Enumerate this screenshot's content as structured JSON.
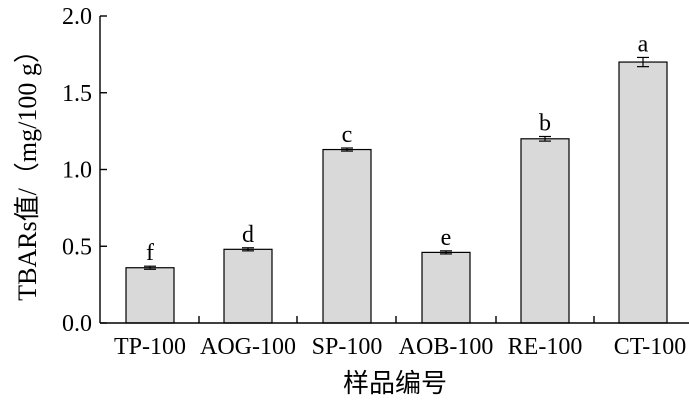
{
  "chart_data": {
    "type": "bar",
    "categories": [
      "TP-100",
      "AOG-100",
      "SP-100",
      "AOB-100",
      "RE-100",
      "CT-100"
    ],
    "values": [
      0.36,
      0.48,
      1.13,
      0.46,
      1.2,
      1.7
    ],
    "errors": [
      0.01,
      0.01,
      0.01,
      0.01,
      0.015,
      0.03
    ],
    "significance_letters": [
      "f",
      "d",
      "c",
      "e",
      "b",
      "a"
    ],
    "xlabel": "样品编号",
    "ylabel": "TBARs值/（mg/100 g）",
    "ylim": [
      0,
      2.0
    ],
    "yticks": [
      0,
      0.5,
      1.0,
      1.5,
      2.0
    ],
    "ytick_labels": [
      "0.0",
      "0.5",
      "1.0",
      "1.5",
      "2.0"
    ],
    "bar_color": "#d9d9d9",
    "bar_edge_color": "#000000",
    "grid": false,
    "legend": "none"
  }
}
